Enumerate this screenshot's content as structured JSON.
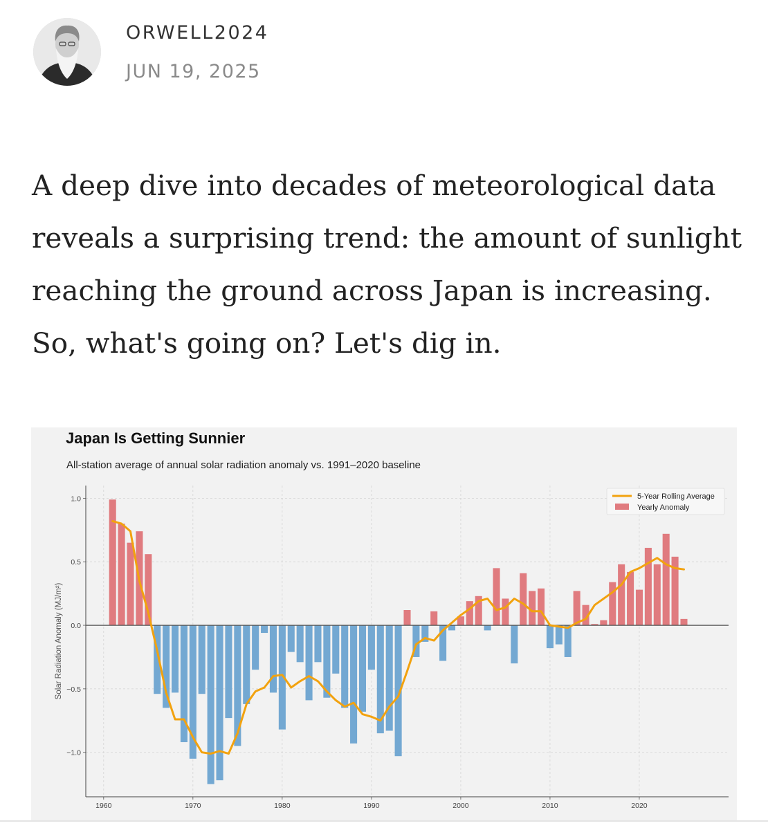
{
  "author": {
    "name": "ORWELL2024",
    "date": "JUN 19, 2025"
  },
  "intro": "A deep dive into decades of meteorological data reveals a surprising trend: the amount of sunlight reaching the ground across Japan is increasing. So, what's going on? Let's dig in.",
  "colors": {
    "positive": "#e07b7f",
    "negative": "#73a8d2",
    "rolling": "#f2a20f"
  },
  "chart_data": {
    "type": "bar",
    "title": "Japan Is Getting Sunnier",
    "subtitle": "All-station average of annual solar radiation anomaly vs. 1991–2020 baseline",
    "xlabel": "",
    "ylabel": "Solar Radiation Anomaly (MJ/m²)",
    "xlim": [
      1958,
      2030
    ],
    "ylim": [
      -1.35,
      1.1
    ],
    "x_ticks": [
      1960,
      1970,
      1980,
      1990,
      2000,
      2010,
      2020
    ],
    "x_tick_labels": [
      "1960",
      "1970",
      "1980",
      "1990",
      "2000",
      "2010",
      "2020"
    ],
    "y_ticks": [
      -1.0,
      -0.5,
      0.0,
      0.5,
      1.0
    ],
    "y_tick_labels": [
      "−1.0",
      "−0.5",
      "0.0",
      "0.5",
      "1.0"
    ],
    "grid": true,
    "legend_position": "top-right",
    "legend": [
      "5-Year Rolling Average",
      "Yearly Anomaly"
    ],
    "years": [
      1961,
      1962,
      1963,
      1964,
      1965,
      1966,
      1967,
      1968,
      1969,
      1970,
      1971,
      1972,
      1973,
      1974,
      1975,
      1976,
      1977,
      1978,
      1979,
      1980,
      1981,
      1982,
      1983,
      1984,
      1985,
      1986,
      1987,
      1988,
      1989,
      1990,
      1991,
      1992,
      1993,
      1994,
      1995,
      1996,
      1997,
      1998,
      1999,
      2000,
      2001,
      2002,
      2003,
      2004,
      2005,
      2006,
      2007,
      2008,
      2009,
      2010,
      2011,
      2012,
      2013,
      2014,
      2015,
      2016,
      2017,
      2018,
      2019,
      2020,
      2021,
      2022,
      2023,
      2024,
      2025
    ],
    "series": [
      {
        "name": "Yearly Anomaly",
        "values": [
          0.99,
          0.8,
          0.65,
          0.74,
          0.56,
          -0.54,
          -0.65,
          -0.53,
          -0.92,
          -1.05,
          -0.54,
          -1.25,
          -1.22,
          -0.73,
          -0.95,
          -0.62,
          -0.35,
          -0.06,
          -0.53,
          -0.82,
          -0.21,
          -0.29,
          -0.59,
          -0.29,
          -0.57,
          -0.38,
          -0.65,
          -0.93,
          -0.68,
          -0.35,
          -0.85,
          -0.83,
          -1.03,
          0.12,
          -0.25,
          -0.13,
          0.11,
          -0.28,
          -0.04,
          0.07,
          0.19,
          0.23,
          -0.04,
          0.45,
          0.21,
          -0.3,
          0.41,
          0.27,
          0.29,
          -0.18,
          -0.15,
          -0.25,
          0.27,
          0.16,
          0.01,
          0.04,
          0.34,
          0.48,
          0.42,
          0.28,
          0.61,
          0.48,
          0.72,
          0.54,
          0.05
        ]
      },
      {
        "name": "5-Year Rolling Average",
        "values": [
          0.82,
          0.8,
          0.74,
          0.35,
          0.1,
          -0.2,
          -0.53,
          -0.74,
          -0.74,
          -0.88,
          -1.0,
          -1.01,
          -0.99,
          -1.01,
          -0.85,
          -0.62,
          -0.52,
          -0.49,
          -0.4,
          -0.39,
          -0.49,
          -0.44,
          -0.4,
          -0.44,
          -0.52,
          -0.59,
          -0.64,
          -0.61,
          -0.7,
          -0.72,
          -0.75,
          -0.64,
          -0.56,
          -0.36,
          -0.15,
          -0.1,
          -0.12,
          -0.04,
          0.02,
          0.08,
          0.13,
          0.19,
          0.21,
          0.12,
          0.14,
          0.21,
          0.17,
          0.11,
          0.11,
          0.0,
          -0.01,
          -0.02,
          0.02,
          0.05,
          0.16,
          0.21,
          0.26,
          0.32,
          0.42,
          0.45,
          0.49,
          0.53,
          0.48,
          0.45,
          0.44
        ]
      }
    ]
  }
}
